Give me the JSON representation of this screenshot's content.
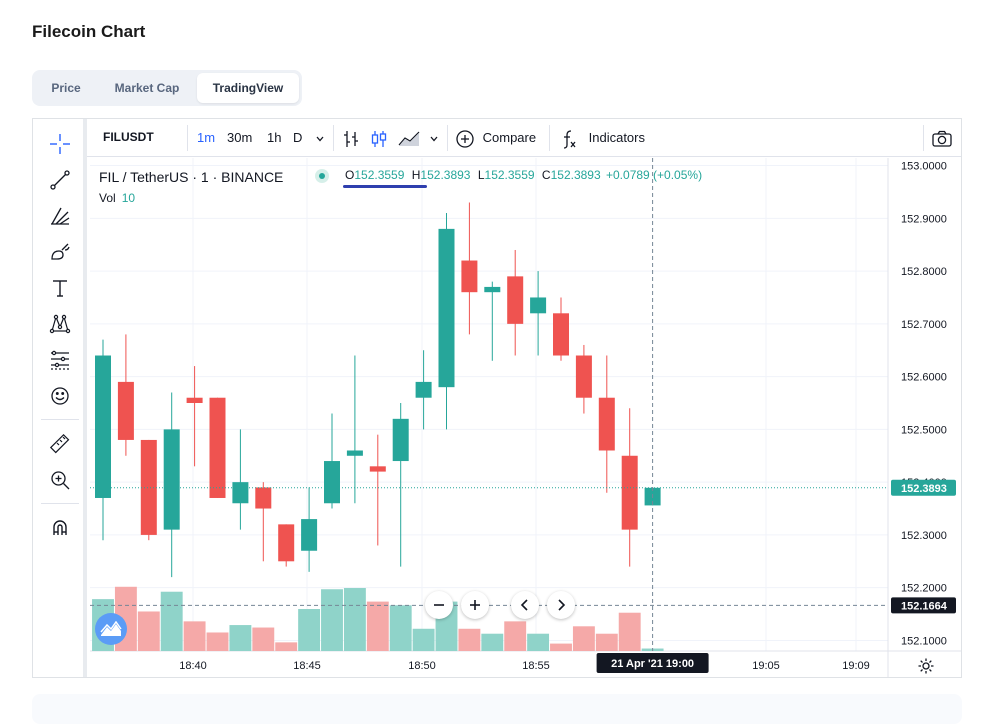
{
  "page": {
    "title": "Filecoin Chart"
  },
  "tabs": [
    {
      "label": "Price",
      "active": false
    },
    {
      "label": "Market Cap",
      "active": false
    },
    {
      "label": "TradingView",
      "active": true
    }
  ],
  "toolbar": {
    "symbol": "FILUSDT",
    "intervals": [
      "1m",
      "30m",
      "1h",
      "D"
    ],
    "active_interval": "1m",
    "compare_label": "Compare",
    "indicators_label": "Indicators"
  },
  "left_tools": [
    "crosshair-icon",
    "trend-line-icon",
    "fib-icon",
    "brush-icon",
    "text-icon",
    "pattern-icon",
    "prediction-icon",
    "emoji-icon",
    "ruler-icon",
    "zoom-icon",
    "magnet-icon"
  ],
  "legend": {
    "pair": "FIL / TetherUS · 1 · BINANCE",
    "o_label": "O",
    "o_value": "152.3559",
    "h_label": "H",
    "h_value": "152.3893",
    "l_label": "L",
    "l_value": "152.3559",
    "c_label": "C",
    "c_value": "152.3893",
    "change": "+0.0789 (+0.05%)",
    "vol_label": "Vol",
    "vol_value": "10"
  },
  "colors": {
    "up": "#26a69a",
    "down": "#ef5350",
    "vol_up": "#8fd3c9",
    "vol_down": "#f5a9a8",
    "accent": "#2962ff"
  },
  "chart_data": {
    "type": "candlestick",
    "x_tick_labels": [
      "18:40",
      "18:45",
      "18:50",
      "18:55",
      "19:05",
      "19:09"
    ],
    "y_tick_labels": [
      "153.0000",
      "152.9000",
      "152.8000",
      "152.7000",
      "152.6000",
      "152.5000",
      "152.4000",
      "152.3000",
      "152.2000",
      "152.1000"
    ],
    "ylim": [
      152.08,
      153.02
    ],
    "last_price_label": "152.3893",
    "crosshair_price_label": "152.1664",
    "crosshair_price": 152.1664,
    "crosshair_time_label": "21 Apr '21   19:00",
    "candles": [
      {
        "o": 152.37,
        "h": 152.67,
        "l": 152.29,
        "c": 152.64,
        "v": 0.42
      },
      {
        "o": 152.59,
        "h": 152.68,
        "l": 152.45,
        "c": 152.48,
        "v": 0.52
      },
      {
        "o": 152.48,
        "h": 152.48,
        "l": 152.29,
        "c": 152.3,
        "v": 0.32
      },
      {
        "o": 152.31,
        "h": 152.57,
        "l": 152.22,
        "c": 152.5,
        "v": 0.48
      },
      {
        "o": 152.56,
        "h": 152.62,
        "l": 152.43,
        "c": 152.55,
        "v": 0.24
      },
      {
        "o": 152.56,
        "h": 152.56,
        "l": 152.37,
        "c": 152.37,
        "v": 0.15
      },
      {
        "o": 152.36,
        "h": 152.5,
        "l": 152.31,
        "c": 152.4,
        "v": 0.21
      },
      {
        "o": 152.39,
        "h": 152.4,
        "l": 152.25,
        "c": 152.35,
        "v": 0.19
      },
      {
        "o": 152.32,
        "h": 152.32,
        "l": 152.24,
        "c": 152.25,
        "v": 0.07
      },
      {
        "o": 152.27,
        "h": 152.39,
        "l": 152.23,
        "c": 152.33,
        "v": 0.34
      },
      {
        "o": 152.36,
        "h": 152.53,
        "l": 152.35,
        "c": 152.44,
        "v": 0.5
      },
      {
        "o": 152.45,
        "h": 152.64,
        "l": 152.36,
        "c": 152.46,
        "v": 0.51
      },
      {
        "o": 152.43,
        "h": 152.49,
        "l": 152.28,
        "c": 152.42,
        "v": 0.4
      },
      {
        "o": 152.44,
        "h": 152.55,
        "l": 152.24,
        "c": 152.52,
        "v": 0.37
      },
      {
        "o": 152.56,
        "h": 152.65,
        "l": 152.5,
        "c": 152.59,
        "v": 0.18
      },
      {
        "o": 152.58,
        "h": 152.91,
        "l": 152.5,
        "c": 152.88,
        "v": 0.4
      },
      {
        "o": 152.82,
        "h": 152.93,
        "l": 152.68,
        "c": 152.76,
        "v": 0.18
      },
      {
        "o": 152.76,
        "h": 152.78,
        "l": 152.63,
        "c": 152.77,
        "v": 0.14
      },
      {
        "o": 152.79,
        "h": 152.84,
        "l": 152.64,
        "c": 152.7,
        "v": 0.24
      },
      {
        "o": 152.72,
        "h": 152.8,
        "l": 152.64,
        "c": 152.75,
        "v": 0.14
      },
      {
        "o": 152.72,
        "h": 152.75,
        "l": 152.63,
        "c": 152.64,
        "v": 0.06
      },
      {
        "o": 152.64,
        "h": 152.66,
        "l": 152.53,
        "c": 152.56,
        "v": 0.2
      },
      {
        "o": 152.56,
        "h": 152.64,
        "l": 152.38,
        "c": 152.46,
        "v": 0.14
      },
      {
        "o": 152.45,
        "h": 152.54,
        "l": 152.24,
        "c": 152.31,
        "v": 0.31
      },
      {
        "o": 152.3559,
        "h": 152.3893,
        "l": 152.3559,
        "c": 152.3893,
        "v": 0.02
      }
    ]
  }
}
